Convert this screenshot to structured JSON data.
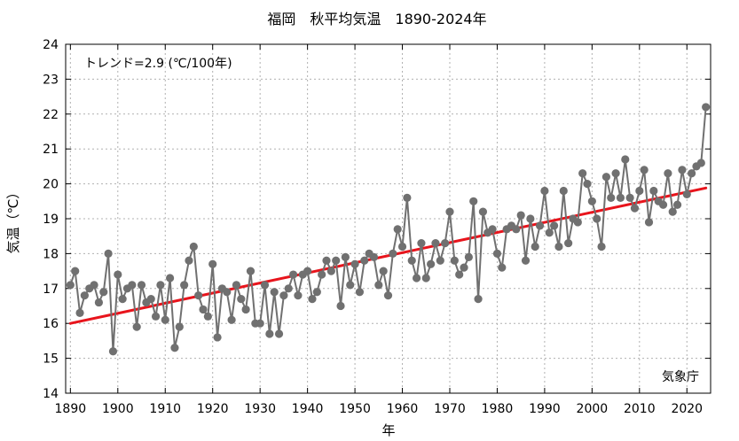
{
  "chart_data": {
    "type": "line",
    "title": "福岡　秋平均気温　1890-2024年",
    "xlabel": "年",
    "ylabel": "気温（℃）",
    "xlim": [
      1889,
      2025
    ],
    "ylim": [
      14,
      24
    ],
    "x_ticks": [
      1890,
      1900,
      1910,
      1920,
      1930,
      1940,
      1950,
      1960,
      1970,
      1980,
      1990,
      2000,
      2010,
      2020
    ],
    "y_ticks": [
      14,
      15,
      16,
      17,
      18,
      19,
      20,
      21,
      22,
      23,
      24
    ],
    "grid": true,
    "trend_annotation": "トレンド=2.9 (℃/100年)",
    "source": "気象庁",
    "colors": {
      "series": "#707070",
      "trend": "#e8141c",
      "grid": "#b0b0b0"
    },
    "series": [
      {
        "values": [
          [
            1890,
            17.1
          ],
          [
            1891,
            17.5
          ],
          [
            1892,
            16.3
          ],
          [
            1893,
            16.8
          ],
          [
            1894,
            17.0
          ],
          [
            1895,
            17.1
          ],
          [
            1896,
            16.6
          ],
          [
            1897,
            16.9
          ],
          [
            1898,
            18.0
          ],
          [
            1899,
            15.2
          ],
          [
            1900,
            17.4
          ],
          [
            1901,
            16.7
          ],
          [
            1902,
            17.0
          ],
          [
            1903,
            17.1
          ],
          [
            1904,
            15.9
          ],
          [
            1905,
            17.1
          ],
          [
            1906,
            16.6
          ],
          [
            1907,
            16.7
          ],
          [
            1908,
            16.2
          ],
          [
            1909,
            17.1
          ],
          [
            1910,
            16.1
          ],
          [
            1911,
            17.3
          ],
          [
            1912,
            15.3
          ],
          [
            1913,
            15.9
          ],
          [
            1914,
            17.1
          ],
          [
            1915,
            17.8
          ],
          [
            1916,
            18.2
          ],
          [
            1917,
            16.8
          ],
          [
            1918,
            16.4
          ],
          [
            1919,
            16.2
          ],
          [
            1920,
            17.7
          ],
          [
            1921,
            15.6
          ],
          [
            1922,
            17.0
          ],
          [
            1923,
            16.9
          ],
          [
            1924,
            16.1
          ],
          [
            1925,
            17.1
          ],
          [
            1926,
            16.7
          ],
          [
            1927,
            16.4
          ],
          [
            1928,
            17.5
          ],
          [
            1929,
            16.0
          ],
          [
            1930,
            16.0
          ],
          [
            1931,
            17.1
          ],
          [
            1932,
            15.7
          ],
          [
            1933,
            16.9
          ],
          [
            1934,
            15.7
          ],
          [
            1935,
            16.8
          ],
          [
            1936,
            17.0
          ],
          [
            1937,
            17.4
          ],
          [
            1938,
            16.8
          ],
          [
            1939,
            17.4
          ],
          [
            1940,
            17.5
          ],
          [
            1941,
            16.7
          ],
          [
            1942,
            16.9
          ],
          [
            1943,
            17.4
          ],
          [
            1944,
            17.8
          ],
          [
            1945,
            17.5
          ],
          [
            1946,
            17.8
          ],
          [
            1947,
            16.5
          ],
          [
            1948,
            17.9
          ],
          [
            1949,
            17.1
          ],
          [
            1950,
            17.7
          ],
          [
            1951,
            16.9
          ],
          [
            1952,
            17.8
          ],
          [
            1953,
            18.0
          ],
          [
            1954,
            17.9
          ],
          [
            1955,
            17.1
          ],
          [
            1956,
            17.5
          ],
          [
            1957,
            16.8
          ],
          [
            1958,
            18.0
          ],
          [
            1959,
            18.7
          ],
          [
            1960,
            18.2
          ],
          [
            1961,
            19.6
          ],
          [
            1962,
            17.8
          ],
          [
            1963,
            17.3
          ],
          [
            1964,
            18.3
          ],
          [
            1965,
            17.3
          ],
          [
            1966,
            17.7
          ],
          [
            1967,
            18.3
          ],
          [
            1968,
            17.8
          ],
          [
            1969,
            18.3
          ],
          [
            1970,
            19.2
          ],
          [
            1971,
            17.8
          ],
          [
            1972,
            17.4
          ],
          [
            1973,
            17.6
          ],
          [
            1974,
            17.9
          ],
          [
            1975,
            19.5
          ],
          [
            1976,
            16.7
          ],
          [
            1977,
            19.2
          ],
          [
            1978,
            18.6
          ],
          [
            1979,
            18.7
          ],
          [
            1980,
            18.0
          ],
          [
            1981,
            17.6
          ],
          [
            1982,
            18.7
          ],
          [
            1983,
            18.8
          ],
          [
            1984,
            18.7
          ],
          [
            1985,
            19.1
          ],
          [
            1986,
            17.8
          ],
          [
            1987,
            19.0
          ],
          [
            1988,
            18.2
          ],
          [
            1989,
            18.8
          ],
          [
            1990,
            19.8
          ],
          [
            1991,
            18.6
          ],
          [
            1992,
            18.8
          ],
          [
            1993,
            18.2
          ],
          [
            1994,
            19.8
          ],
          [
            1995,
            18.3
          ],
          [
            1996,
            19.0
          ],
          [
            1997,
            18.9
          ],
          [
            1998,
            20.3
          ],
          [
            1999,
            20.0
          ],
          [
            2000,
            19.5
          ],
          [
            2001,
            19.0
          ],
          [
            2002,
            18.2
          ],
          [
            2003,
            20.2
          ],
          [
            2004,
            19.6
          ],
          [
            2005,
            20.3
          ],
          [
            2006,
            19.6
          ],
          [
            2007,
            20.7
          ],
          [
            2008,
            19.6
          ],
          [
            2009,
            19.3
          ],
          [
            2010,
            19.8
          ],
          [
            2011,
            20.4
          ],
          [
            2012,
            18.9
          ],
          [
            2013,
            19.8
          ],
          [
            2014,
            19.5
          ],
          [
            2015,
            19.4
          ],
          [
            2016,
            20.3
          ],
          [
            2017,
            19.2
          ],
          [
            2018,
            19.4
          ],
          [
            2019,
            20.4
          ],
          [
            2020,
            19.7
          ],
          [
            2021,
            20.3
          ],
          [
            2022,
            20.5
          ],
          [
            2023,
            20.6
          ],
          [
            2024,
            22.2
          ]
        ]
      }
    ],
    "trend_line": {
      "x": [
        1890,
        2024
      ],
      "y": [
        16.0,
        19.88
      ]
    }
  }
}
